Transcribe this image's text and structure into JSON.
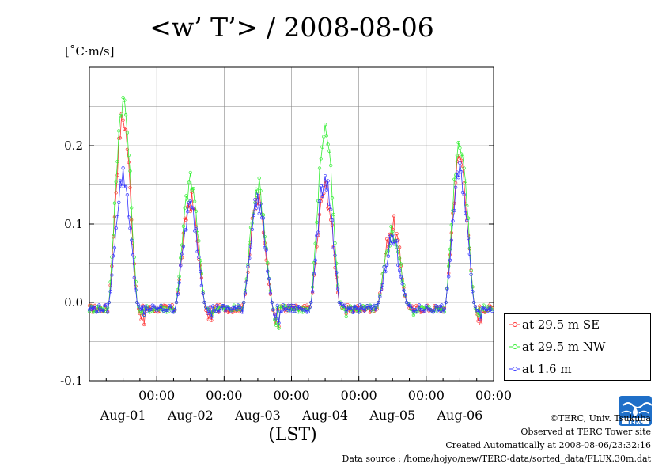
{
  "chart_data": {
    "type": "line",
    "title": "<w’ T’> / 2008-08-06",
    "ylabel": "[˚C·m/s]",
    "xlabel": "(LST)",
    "ylim": [
      -0.1,
      0.3
    ],
    "yticks": [
      -0.1,
      0.0,
      0.1,
      0.2
    ],
    "ytick_labels": [
      "-0.1",
      "0.0",
      "0.1",
      "0.2"
    ],
    "xlim_hours": [
      0,
      144
    ],
    "x_unit": "hours since Aug-01 00:00",
    "xticks": [
      {
        "time": "00:00",
        "date": "Aug-01"
      },
      {
        "time": "00:00",
        "date": "Aug-02"
      },
      {
        "time": "00:00",
        "date": "Aug-03"
      },
      {
        "time": "00:00",
        "date": "Aug-04"
      },
      {
        "time": "00:00",
        "date": "Aug-05"
      },
      {
        "time": "00:00",
        "date": "Aug-06"
      }
    ],
    "grid": true,
    "legend_position": "bottom-right outside",
    "series": [
      {
        "name": "at 29.5 m SE",
        "color": "#ff3333",
        "peaks": [
          0.235,
          0.13,
          0.13,
          0.145,
          0.098,
          0.185
        ],
        "nights": [
          -0.03,
          -0.03,
          -0.035,
          -0.01,
          -0.01,
          -0.028
        ]
      },
      {
        "name": "at 29.5 m NW",
        "color": "#33ee33",
        "peaks": [
          0.257,
          0.153,
          0.148,
          0.221,
          0.09,
          0.206
        ],
        "nights": [
          -0.02,
          -0.015,
          -0.04,
          -0.01,
          -0.01,
          -0.02
        ]
      },
      {
        "name": "at 1.6 m",
        "color": "#3333ff",
        "peaks": [
          0.16,
          0.12,
          0.13,
          0.16,
          0.08,
          0.165
        ],
        "nights": [
          -0.015,
          -0.015,
          -0.03,
          -0.01,
          -0.01,
          -0.015
        ]
      }
    ]
  },
  "credits": {
    "copyright": "©TERC, Univ. Tsukuba",
    "observed": "Observed at TERC Tower site",
    "created": "Created Automatically at 2008-08-06/23:32:16",
    "source": "Data source : /home/hojyo/new/TERC-data/sorted_data/FLUX.30m.dat",
    "logo_text": "TERC"
  }
}
